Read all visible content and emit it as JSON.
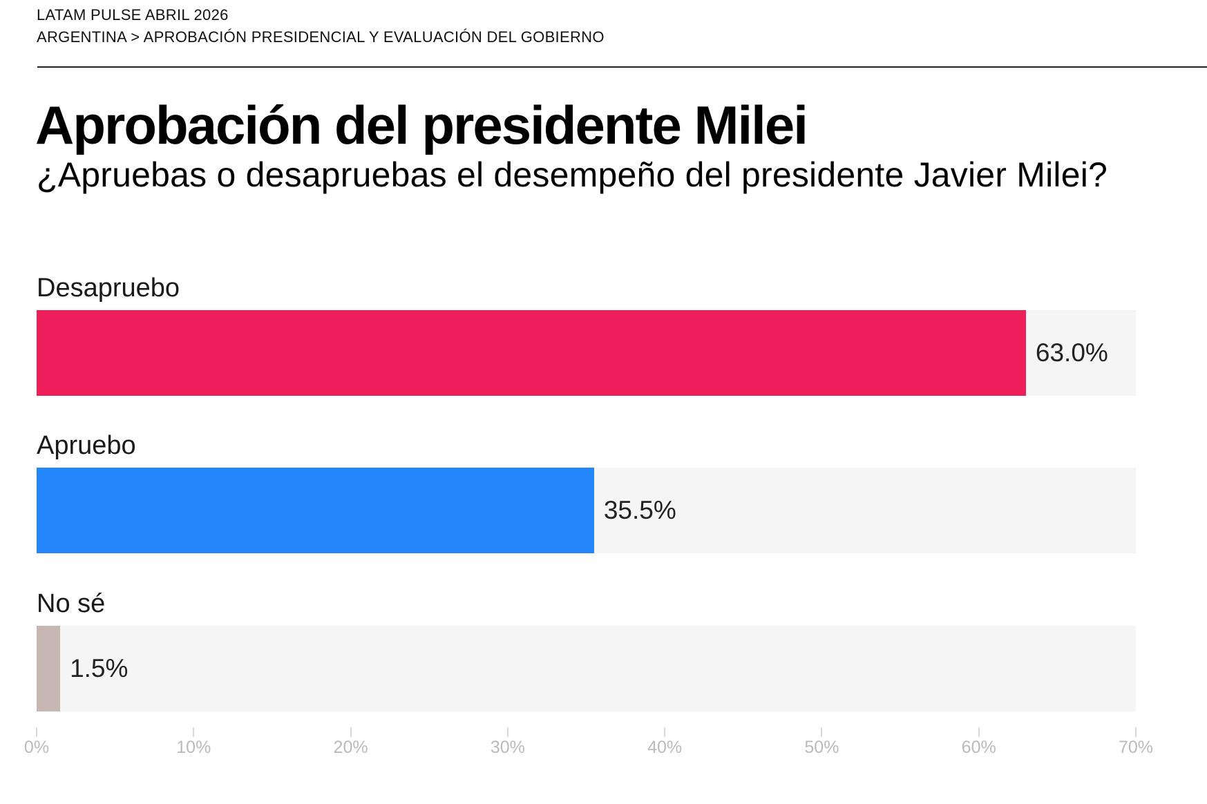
{
  "header": {
    "eyebrow": "LATAM PULSE ABRIL 2026",
    "breadcrumb": "ARGENTINA > APROBACIÓN PRESIDENCIAL Y EVALUACIÓN DEL GOBIERNO"
  },
  "chart_data": {
    "type": "bar",
    "orientation": "horizontal",
    "title": "Aprobación del presidente Milei",
    "subtitle": "¿Apruebas o desapruebas el desempeño del presidente Javier Milei?",
    "categories": [
      "Desapruebo",
      "Apruebo",
      "No sé"
    ],
    "values": [
      63.0,
      35.5,
      1.5
    ],
    "value_labels": [
      "63.0%",
      "35.5%",
      "1.5%"
    ],
    "colors": [
      "#ee1e5a",
      "#2387fb",
      "#c6b7b3"
    ],
    "track_color": "#f5f5f5",
    "xlabel": "",
    "ylabel": "",
    "xlim": [
      0,
      70
    ],
    "x_ticks": [
      0,
      10,
      20,
      30,
      40,
      50,
      60,
      70
    ],
    "x_tick_labels": [
      "0%",
      "10%",
      "20%",
      "30%",
      "40%",
      "50%",
      "60%",
      "70%"
    ],
    "grid": false,
    "legend": "none"
  }
}
